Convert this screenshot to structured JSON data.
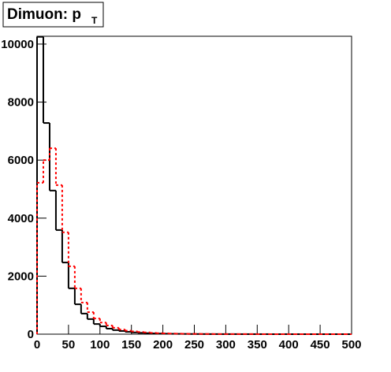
{
  "chart_data": {
    "type": "histogram",
    "title": "Dimuon: p",
    "title_subscript": "T",
    "bins": [
      0,
      10,
      20,
      30,
      40,
      50,
      60,
      70,
      80,
      90,
      100,
      110,
      120,
      130,
      140,
      150,
      160,
      170,
      180,
      190,
      200,
      210,
      220,
      230,
      240,
      250,
      260,
      270,
      280,
      290,
      300,
      310,
      320,
      330,
      340,
      350,
      360,
      370,
      380,
      390,
      400,
      410,
      420,
      430,
      440,
      450,
      460,
      470,
      480,
      490,
      500
    ],
    "series": [
      {
        "color": "#000000",
        "style": "solid",
        "values": [
          10250,
          7280,
          4950,
          3590,
          2470,
          1580,
          1030,
          710,
          520,
          350,
          270,
          190,
          140,
          110,
          80,
          60,
          45,
          35,
          25,
          20,
          15,
          12,
          10,
          8,
          6,
          5,
          4,
          3,
          3,
          2,
          2,
          2,
          1,
          1,
          1,
          1,
          1,
          0,
          0,
          1,
          0,
          0,
          0,
          0,
          0,
          0,
          0,
          0,
          0,
          0
        ]
      },
      {
        "color": "#ff0000",
        "style": "dotted",
        "values": [
          5220,
          6000,
          6410,
          5140,
          3510,
          2340,
          1580,
          1090,
          760,
          540,
          400,
          300,
          220,
          160,
          120,
          95,
          75,
          60,
          45,
          35,
          28,
          22,
          17,
          14,
          11,
          9,
          7,
          6,
          5,
          4,
          3,
          3,
          2,
          2,
          2,
          1,
          1,
          1,
          1,
          1,
          1,
          0,
          1,
          0,
          0,
          0,
          0,
          0,
          0,
          0
        ]
      }
    ],
    "xlim": [
      0,
      500
    ],
    "xticks": [
      0,
      50,
      100,
      150,
      200,
      250,
      300,
      350,
      400,
      450,
      500
    ],
    "ylim": [
      0,
      10270
    ],
    "yticks": [
      0,
      2000,
      4000,
      6000,
      8000,
      10000
    ]
  }
}
